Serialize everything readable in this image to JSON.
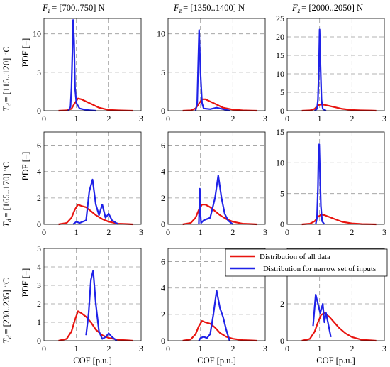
{
  "chart_data": {
    "type": "line",
    "grid": true,
    "legend": {
      "placement": "top-right",
      "entries": [
        {
          "label": "Distribution of all data",
          "color": "#e8140f"
        },
        {
          "label": "Distribution for narrow set of inputs",
          "color": "#1f22e8"
        }
      ]
    },
    "col_titles": [
      "F",
      "F",
      "F"
    ],
    "col_title_subscript": "z",
    "col_ranges": [
      "= [700..750] N",
      "= [1350..1400] N",
      "= [2000..2050] N"
    ],
    "row_titles": [
      "T",
      "T",
      "T"
    ],
    "row_title_subscript": "d",
    "row_ranges": [
      "= [115..120] °C",
      "= [165..170] °C",
      "= [230..235] °C"
    ],
    "xlabel": "COF [p.u.]",
    "ylabel": "PDF [–]",
    "xlim": [
      0,
      3
    ],
    "xticks": [
      "0",
      "1",
      "2",
      "3"
    ],
    "panels": [
      {
        "row": 0,
        "col": 0,
        "ylim": [
          0,
          12
        ],
        "yticks": [
          0,
          5,
          10
        ],
        "series": [
          {
            "name": "Distribution of all data",
            "x": [
              0.45,
              0.7,
              0.85,
              0.95,
              1.05,
              1.15,
              1.3,
              1.5,
              1.7,
              2.0,
              2.3,
              2.6,
              2.75
            ],
            "y": [
              0,
              0.05,
              0.25,
              1.0,
              1.6,
              1.5,
              1.2,
              0.8,
              0.4,
              0.1,
              0.05,
              0.02,
              0
            ]
          },
          {
            "name": "Distribution for narrow set of inputs",
            "x": [
              0.75,
              0.82,
              0.85,
              0.88,
              0.9,
              0.93,
              0.96,
              1.0,
              1.1,
              1.3,
              1.6
            ],
            "y": [
              0,
              0.5,
              3,
              8,
              11.8,
              9,
              3,
              1,
              0.3,
              0.1,
              0
            ]
          }
        ]
      },
      {
        "row": 0,
        "col": 1,
        "ylim": [
          0,
          12
        ],
        "yticks": [
          0,
          5,
          10
        ],
        "series": [
          {
            "name": "Distribution of all data",
            "x": [
              0.45,
              0.7,
              0.85,
              0.95,
              1.05,
              1.15,
              1.3,
              1.5,
              1.7,
              2.0,
              2.3,
              2.6,
              2.75
            ],
            "y": [
              0,
              0.05,
              0.3,
              0.9,
              1.5,
              1.5,
              1.2,
              0.8,
              0.4,
              0.15,
              0.05,
              0.02,
              0
            ]
          },
          {
            "name": "Distribution for narrow set of inputs",
            "x": [
              0.85,
              0.9,
              0.93,
              0.96,
              1.0,
              1.05,
              1.1,
              1.3,
              1.5,
              1.7,
              1.9
            ],
            "y": [
              0,
              1,
              6,
              10.5,
              5,
              1,
              0.3,
              0.2,
              0.4,
              0.2,
              0
            ]
          }
        ]
      },
      {
        "row": 0,
        "col": 2,
        "ylim": [
          0,
          25
        ],
        "yticks": [
          0,
          5,
          10,
          15,
          20,
          25
        ],
        "series": [
          {
            "name": "Distribution of all data",
            "x": [
              0.45,
              0.7,
              0.85,
              0.95,
              1.05,
              1.15,
              1.3,
              1.5,
              1.7,
              2.0,
              2.3,
              2.6,
              2.75
            ],
            "y": [
              0,
              0.1,
              0.5,
              1.5,
              1.7,
              1.6,
              1.3,
              0.9,
              0.5,
              0.2,
              0.1,
              0.05,
              0
            ]
          },
          {
            "name": "Distribution for narrow set of inputs",
            "x": [
              0.85,
              0.92,
              0.95,
              0.98,
              1.0,
              1.03,
              1.06,
              1.1,
              1.2
            ],
            "y": [
              0,
              0.5,
              3,
              12,
              22,
              12,
              3,
              0.5,
              0
            ]
          }
        ]
      },
      {
        "row": 1,
        "col": 0,
        "ylim": [
          0,
          7
        ],
        "yticks": [
          0,
          2,
          4,
          6
        ],
        "series": [
          {
            "name": "Distribution of all data",
            "x": [
              0.45,
              0.7,
              0.85,
              0.95,
              1.05,
              1.15,
              1.3,
              1.45,
              1.6,
              1.8,
              2.0,
              2.3,
              2.6,
              2.75
            ],
            "y": [
              0,
              0.1,
              0.5,
              1.1,
              1.5,
              1.4,
              1.3,
              1.0,
              0.7,
              0.4,
              0.2,
              0.05,
              0.02,
              0
            ]
          },
          {
            "name": "Distribution for narrow set of inputs",
            "x": [
              0.9,
              1.0,
              1.1,
              1.3,
              1.4,
              1.5,
              1.6,
              1.7,
              1.8,
              1.9,
              2.0,
              2.1,
              2.3
            ],
            "y": [
              0,
              0.2,
              0.1,
              0.3,
              2.5,
              3.4,
              1.5,
              0.7,
              1.5,
              0.5,
              0.8,
              0.3,
              0
            ]
          }
        ]
      },
      {
        "row": 1,
        "col": 1,
        "ylim": [
          0,
          7
        ],
        "yticks": [
          0,
          2,
          4,
          6
        ],
        "series": [
          {
            "name": "Distribution of all data",
            "x": [
              0.45,
              0.7,
              0.85,
              0.95,
              1.05,
              1.15,
              1.3,
              1.45,
              1.6,
              1.8,
              2.0,
              2.3,
              2.6,
              2.75
            ],
            "y": [
              0,
              0.1,
              0.5,
              1.1,
              1.5,
              1.5,
              1.3,
              1.0,
              0.7,
              0.4,
              0.2,
              0.05,
              0.02,
              0
            ]
          },
          {
            "name": "Distribution for narrow set of inputs",
            "x": [
              0.95,
              0.98,
              1.0,
              1.02,
              1.1,
              1.3,
              1.45,
              1.55,
              1.65,
              1.75,
              1.85,
              2.0
            ],
            "y": [
              0,
              2.7,
              0.8,
              0.1,
              0.3,
              0.5,
              2.0,
              3.7,
              2.0,
              0.8,
              0.3,
              0
            ]
          }
        ]
      },
      {
        "row": 1,
        "col": 2,
        "ylim": [
          0,
          15
        ],
        "yticks": [
          0,
          5,
          10,
          15
        ],
        "series": [
          {
            "name": "Distribution of all data",
            "x": [
              0.45,
              0.7,
              0.85,
              0.95,
              1.05,
              1.15,
              1.3,
              1.5,
              1.7,
              2.0,
              2.3,
              2.6,
              2.75
            ],
            "y": [
              0,
              0.1,
              0.5,
              1.2,
              1.6,
              1.5,
              1.2,
              0.8,
              0.4,
              0.15,
              0.05,
              0.02,
              0
            ]
          },
          {
            "name": "Distribution for narrow set of inputs",
            "x": [
              0.88,
              0.92,
              0.95,
              0.97,
              0.99,
              1.01,
              1.04,
              1.08,
              1.15
            ],
            "y": [
              0,
              1,
              6,
              12,
              13,
              9,
              3,
              0.5,
              0
            ]
          }
        ]
      },
      {
        "row": 2,
        "col": 0,
        "ylim": [
          0,
          5
        ],
        "yticks": [
          0,
          1,
          2,
          3,
          4,
          5
        ],
        "series": [
          {
            "name": "Distribution of all data",
            "x": [
              0.45,
              0.7,
              0.85,
              0.95,
              1.05,
              1.15,
              1.3,
              1.45,
              1.6,
              1.8,
              2.0,
              2.3,
              2.6,
              2.75
            ],
            "y": [
              0,
              0.1,
              0.5,
              1.1,
              1.6,
              1.5,
              1.3,
              1.0,
              0.6,
              0.3,
              0.15,
              0.05,
              0.02,
              0
            ]
          },
          {
            "name": "Distribution for narrow set of inputs",
            "x": [
              1.3,
              1.38,
              1.45,
              1.52,
              1.6,
              1.7,
              1.8,
              1.9,
              2.0,
              2.1,
              2.25
            ],
            "y": [
              0.3,
              1.5,
              3.3,
              3.8,
              2.0,
              0.5,
              0.1,
              0.2,
              0.4,
              0.2,
              0
            ]
          }
        ]
      },
      {
        "row": 2,
        "col": 1,
        "ylim": [
          0,
          7
        ],
        "yticks": [
          0,
          2,
          4,
          6
        ],
        "series": [
          {
            "name": "Distribution of all data",
            "x": [
              0.45,
              0.7,
              0.85,
              0.95,
              1.05,
              1.15,
              1.3,
              1.45,
              1.6,
              1.8,
              2.0,
              2.3,
              2.6,
              2.75
            ],
            "y": [
              0,
              0.1,
              0.5,
              1.1,
              1.5,
              1.4,
              1.3,
              1.0,
              0.6,
              0.3,
              0.15,
              0.05,
              0.02,
              0
            ]
          },
          {
            "name": "Distribution for narrow set of inputs",
            "x": [
              0.95,
              1.0,
              1.1,
              1.2,
              1.3,
              1.4,
              1.5,
              1.6,
              1.7,
              1.8,
              1.9
            ],
            "y": [
              0,
              0.2,
              0.3,
              0.2,
              0.5,
              2.0,
              3.8,
              2.5,
              1.8,
              0.8,
              0
            ]
          }
        ]
      },
      {
        "row": 2,
        "col": 2,
        "ylim": [
          0,
          5
        ],
        "yticks": [
          0,
          2,
          4
        ],
        "series": [
          {
            "name": "Distribution of all data",
            "x": [
              0.45,
              0.7,
              0.85,
              0.95,
              1.05,
              1.15,
              1.3,
              1.45,
              1.6,
              1.8,
              2.0,
              2.3,
              2.6,
              2.75
            ],
            "y": [
              0,
              0.1,
              0.5,
              1.0,
              1.4,
              1.5,
              1.3,
              1.0,
              0.7,
              0.4,
              0.2,
              0.05,
              0.02,
              0
            ]
          },
          {
            "name": "Distribution for narrow set of inputs",
            "x": [
              0.8,
              0.88,
              0.95,
              1.02,
              1.1,
              1.15,
              1.2,
              1.28,
              1.35
            ],
            "y": [
              0.8,
              2.5,
              2.0,
              1.5,
              2.0,
              1.0,
              1.5,
              0.8,
              0.2
            ]
          }
        ]
      }
    ]
  }
}
